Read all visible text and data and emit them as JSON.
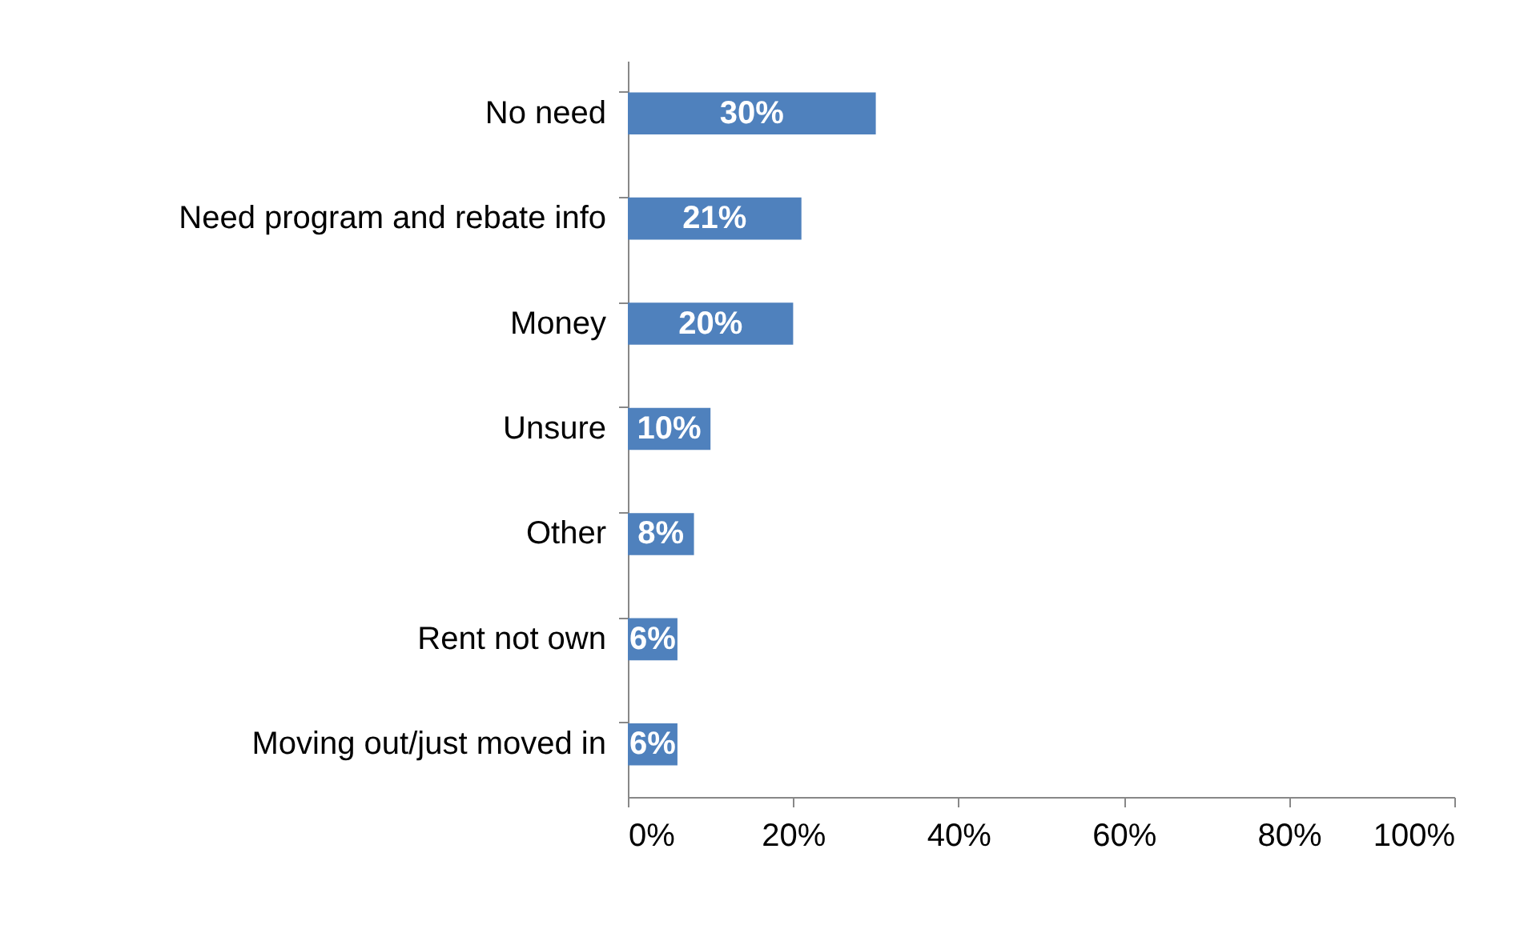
{
  "chart_data": {
    "type": "bar",
    "orientation": "horizontal",
    "categories": [
      "No need",
      "Need program and rebate info",
      "Money",
      "Unsure",
      "Other",
      "Rent not own",
      "Moving out/just moved in"
    ],
    "values": [
      30,
      21,
      20,
      10,
      8,
      6,
      6
    ],
    "value_labels": [
      "30%",
      "21%",
      "20%",
      "10%",
      "8%",
      "6%",
      "6%"
    ],
    "color": "#4f81bd",
    "xlim": [
      0,
      100
    ],
    "xticks": [
      {
        "value": 0,
        "label": "0%"
      },
      {
        "value": 20,
        "label": "20%"
      },
      {
        "value": 40,
        "label": "40%"
      },
      {
        "value": 60,
        "label": "60%"
      },
      {
        "value": 80,
        "label": "80%"
      },
      {
        "value": 100,
        "label": "100%"
      }
    ],
    "grid": false
  }
}
